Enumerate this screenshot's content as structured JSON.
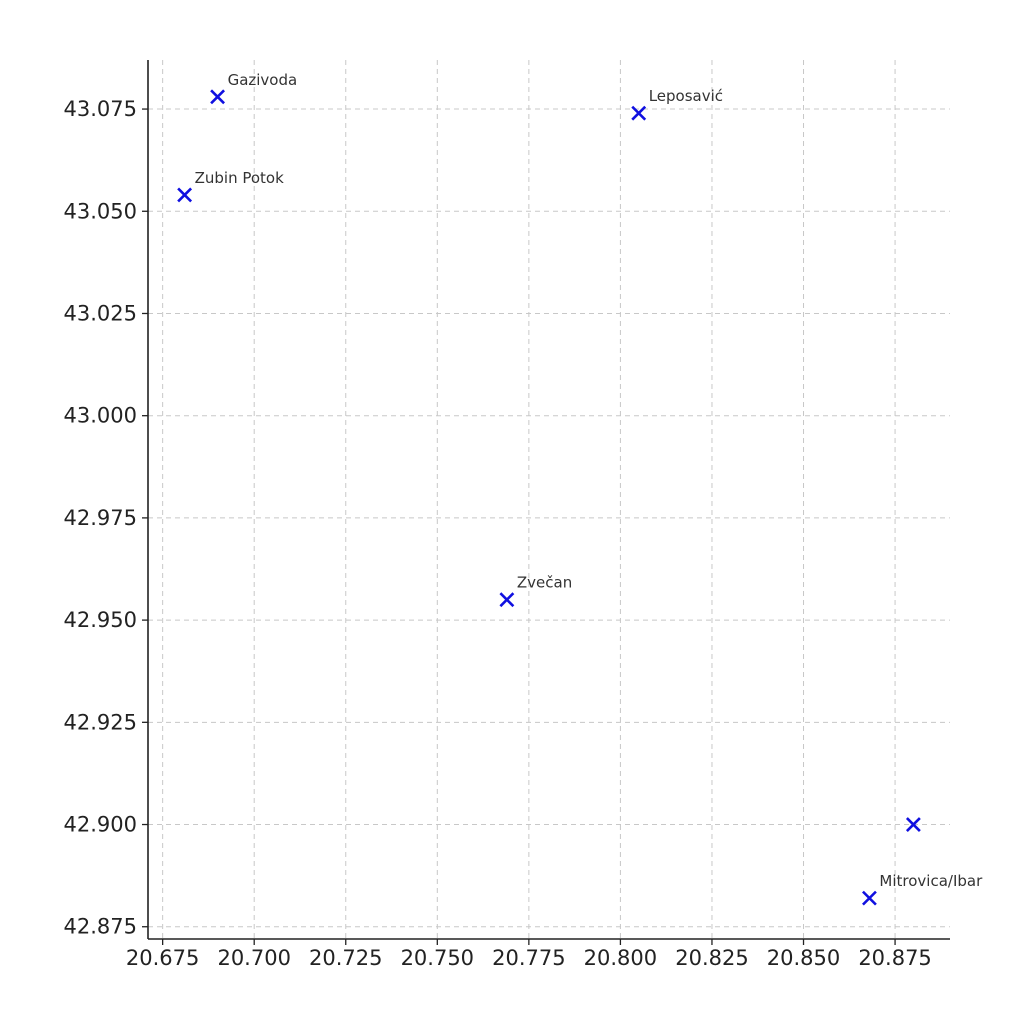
{
  "chart_data": {
    "type": "scatter",
    "title": "",
    "xlabel": "",
    "ylabel": "",
    "xlim": [
      20.671,
      20.89
    ],
    "ylim": [
      42.872,
      43.087
    ],
    "x_ticks": [
      "20.675",
      "20.700",
      "20.725",
      "20.750",
      "20.775",
      "20.800",
      "20.825",
      "20.850",
      "20.875"
    ],
    "x_tick_values": [
      20.675,
      20.7,
      20.725,
      20.75,
      20.775,
      20.8,
      20.825,
      20.85,
      20.875
    ],
    "y_ticks": [
      "42.875",
      "42.900",
      "42.925",
      "42.950",
      "42.975",
      "43.000",
      "43.025",
      "43.050",
      "43.075"
    ],
    "y_tick_values": [
      42.875,
      42.9,
      42.925,
      42.95,
      42.975,
      43.0,
      43.025,
      43.05,
      43.075
    ],
    "grid": true,
    "marker": "x",
    "marker_color": "#1010e0",
    "points": [
      {
        "label": "Gazivoda",
        "x": 20.69,
        "y": 43.078
      },
      {
        "label": "Zubin Potok",
        "x": 20.681,
        "y": 43.054
      },
      {
        "label": "Leposavić",
        "x": 20.805,
        "y": 43.074
      },
      {
        "label": "Zvečan",
        "x": 20.769,
        "y": 42.955
      },
      {
        "label": "",
        "x": 20.88,
        "y": 42.9
      },
      {
        "label": "Mitrovica/Ibar",
        "x": 20.868,
        "y": 42.882
      }
    ]
  }
}
